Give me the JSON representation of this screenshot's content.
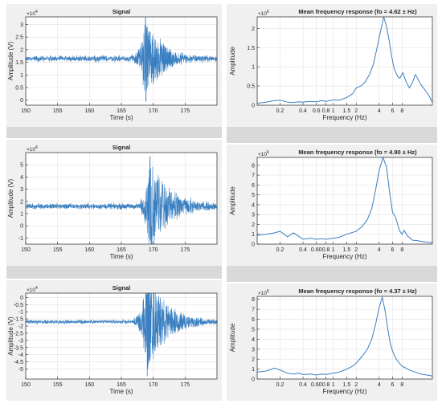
{
  "colors": {
    "line": "#3a7fc1",
    "axes": "#262626",
    "grid": "#e2e2e2",
    "panel": "#f0f0f0",
    "separator": "#d9d9d9"
  },
  "chart_data": [
    {
      "type": "line",
      "title": "Signal",
      "xlabel": "Time (s)",
      "ylabel": "Amplitude (V)",
      "exponent_label": "×10",
      "exponent_value": "4",
      "xlim": [
        150,
        180
      ],
      "ylim": [
        -0.2,
        3.3
      ],
      "xticks": [
        150,
        155,
        160,
        165,
        170,
        175
      ],
      "yticks": [
        0,
        0.5,
        1,
        1.5,
        2,
        2.5,
        3
      ],
      "grid": true,
      "baseline": 1.65,
      "noise": 0.1,
      "event_start": 166,
      "peak_time": 168.8,
      "peak_high": 3.3,
      "peak_low": -0.05,
      "decay": 2.6
    },
    {
      "type": "line",
      "title": "Mean frequency response (fo = 4.62 ±  Hz)",
      "xlabel": "Frequency (Hz)",
      "ylabel": "Amplitude",
      "exponent_label": "×10",
      "exponent_value": "6",
      "x_scale": "log",
      "xlim": [
        0.1,
        20
      ],
      "ylim": [
        0,
        2.3
      ],
      "xticks": [
        0.2,
        0.4,
        0.6,
        0.8,
        1,
        1.5,
        2,
        4,
        6,
        8
      ],
      "xtick_labels": [
        "0.2",
        "0.4",
        "0.6",
        "0.8",
        "1",
        "1.5",
        "2",
        "4",
        "6",
        "8"
      ],
      "yticks": [
        0,
        0.5,
        1,
        1.5,
        2
      ],
      "grid": true,
      "x": [
        0.1,
        0.13,
        0.17,
        0.2,
        0.25,
        0.3,
        0.35,
        0.4,
        0.5,
        0.6,
        0.7,
        0.8,
        1.0,
        1.2,
        1.5,
        1.8,
        2.0,
        2.3,
        2.6,
        3.0,
        3.4,
        3.8,
        4.2,
        4.6,
        5.0,
        5.4,
        5.8,
        6.3,
        7.0,
        7.5,
        8.2,
        9.0,
        10,
        11,
        12,
        14,
        16,
        18,
        20
      ],
      "y": [
        0.05,
        0.08,
        0.12,
        0.13,
        0.08,
        0.07,
        0.09,
        0.08,
        0.1,
        0.09,
        0.12,
        0.1,
        0.14,
        0.13,
        0.2,
        0.3,
        0.45,
        0.5,
        0.6,
        0.8,
        1.1,
        1.55,
        1.95,
        2.3,
        2.05,
        1.7,
        1.3,
        0.95,
        0.75,
        0.7,
        0.85,
        0.62,
        0.45,
        0.6,
        0.8,
        0.55,
        0.4,
        0.25,
        0.08
      ]
    },
    {
      "type": "line",
      "title": "Signal",
      "xlabel": "Time (s)",
      "ylabel": "Amplitude (V)",
      "exponent_label": "×10",
      "exponent_value": "4",
      "xlim": [
        150,
        180
      ],
      "ylim": [
        -1.5,
        6
      ],
      "xticks": [
        150,
        155,
        160,
        165,
        170,
        175
      ],
      "yticks": [
        -1,
        0,
        1,
        2,
        3,
        4,
        5
      ],
      "grid": true,
      "baseline": 1.6,
      "noise": 0.2,
      "event_start": 168,
      "peak_time": 169.5,
      "peak_high": 5.7,
      "peak_low": -1.2,
      "decay": 3.0
    },
    {
      "type": "line",
      "title": "Mean frequency response (fo = 4.90 ±  Hz)",
      "xlabel": "Frequency (Hz)",
      "ylabel": "Amplitude",
      "exponent_label": "×10",
      "exponent_value": "6",
      "x_scale": "log",
      "xlim": [
        0.1,
        20
      ],
      "ylim": [
        0,
        8.8
      ],
      "xticks": [
        0.2,
        0.4,
        0.6,
        0.8,
        1,
        1.5,
        2,
        4,
        6,
        8
      ],
      "xtick_labels": [
        "0.2",
        "0.4",
        "0.60",
        "0.8",
        "1",
        "1.5",
        "2",
        "4",
        "6",
        "8"
      ],
      "yticks": [
        0,
        1,
        2,
        3,
        4,
        5,
        6,
        7,
        8
      ],
      "grid": true,
      "x": [
        0.1,
        0.13,
        0.17,
        0.2,
        0.25,
        0.3,
        0.35,
        0.4,
        0.5,
        0.6,
        0.7,
        0.8,
        1.0,
        1.2,
        1.5,
        1.8,
        2.0,
        2.4,
        2.8,
        3.2,
        3.6,
        4.0,
        4.5,
        5.0,
        5.5,
        6.0,
        6.5,
        7.0,
        7.5,
        8.0,
        8.5,
        9.5,
        11,
        13,
        15,
        17,
        20
      ],
      "y": [
        0.9,
        1.0,
        1.15,
        1.3,
        0.75,
        1.15,
        0.8,
        0.5,
        0.6,
        0.5,
        0.55,
        0.5,
        0.6,
        0.7,
        1.0,
        1.2,
        1.3,
        1.8,
        2.5,
        3.6,
        5.5,
        7.5,
        8.8,
        7.8,
        5.2,
        3.2,
        2.8,
        2.0,
        1.3,
        1.0,
        1.4,
        0.8,
        0.4,
        0.35,
        0.25,
        0.2,
        0.15
      ]
    },
    {
      "type": "line",
      "title": "Signal",
      "xlabel": "Time (s)",
      "ylabel": "Amplitude (V)",
      "exponent_label": "×10",
      "exponent_value": "4",
      "xlim": [
        150,
        180
      ],
      "ylim": [
        -5.7,
        0.3
      ],
      "xticks": [
        150,
        155,
        160,
        165,
        170,
        175
      ],
      "yticks": [
        -5,
        -4.5,
        -4,
        -3.5,
        -3,
        -2.5,
        -2,
        -1.5,
        -1,
        -0.5,
        0
      ],
      "grid": true,
      "baseline": -1.7,
      "noise": 0.12,
      "event_start": 167,
      "peak_time": 169.0,
      "peak_high": 0.2,
      "peak_low": -5.5,
      "decay": 3.0
    },
    {
      "type": "line",
      "title": "Mean frequency response (fo = 4.37 ±  Hz)",
      "xlabel": "Frequency (Hz)",
      "ylabel": "Amplitude",
      "exponent_label": "×10",
      "exponent_value": "6",
      "x_scale": "log",
      "xlim": [
        0.1,
        20
      ],
      "ylim": [
        0,
        8.3
      ],
      "xticks": [
        0.2,
        0.4,
        0.6,
        0.8,
        1,
        1.5,
        2,
        4,
        6,
        8
      ],
      "xtick_labels": [
        "0.2",
        "0.4",
        "0.60",
        "0.8",
        "1",
        "1.5",
        "2",
        "4",
        "6",
        "8"
      ],
      "yticks": [
        0,
        1,
        2,
        3,
        4,
        5,
        6,
        7,
        8
      ],
      "grid": true,
      "x": [
        0.1,
        0.13,
        0.17,
        0.2,
        0.25,
        0.3,
        0.35,
        0.4,
        0.5,
        0.6,
        0.7,
        0.8,
        1.0,
        1.2,
        1.5,
        1.8,
        2.0,
        2.4,
        2.8,
        3.2,
        3.6,
        4.0,
        4.4,
        4.8,
        5.2,
        5.6,
        6.0,
        6.5,
        7.0,
        8.0,
        9.0,
        10,
        12,
        14,
        17,
        20
      ],
      "y": [
        0.7,
        0.8,
        1.1,
        0.9,
        0.6,
        0.5,
        0.6,
        0.45,
        0.5,
        0.4,
        0.5,
        0.45,
        0.6,
        0.7,
        1.0,
        1.3,
        1.6,
        2.3,
        3.0,
        4.0,
        5.5,
        7.2,
        8.2,
        6.8,
        5.0,
        3.6,
        2.8,
        2.2,
        1.8,
        1.3,
        1.1,
        0.9,
        0.7,
        0.5,
        0.4,
        0.3
      ]
    }
  ]
}
